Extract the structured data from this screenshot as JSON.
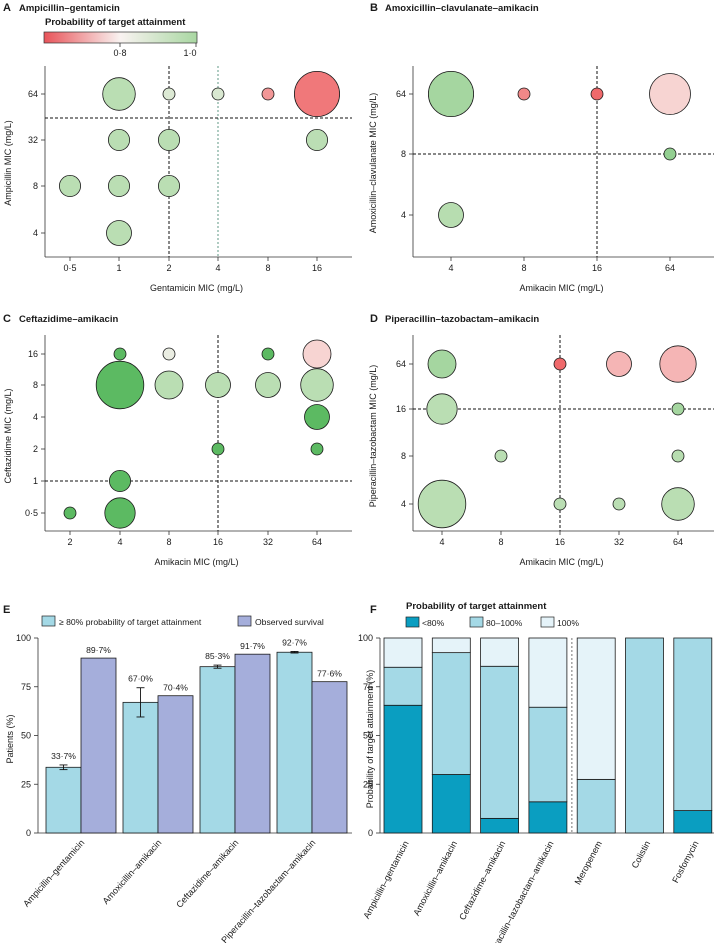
{
  "colors": {
    "red": "#ee5a5c",
    "pale": "#f9f2f0",
    "green": "#5cba62",
    "light_blue": "#a4d9e6",
    "purple": "#a5aedb",
    "teal": "#0a9ec1",
    "very_light_blue": "#e5f3f9"
  },
  "colorbar": {
    "title": "Probability of target attainment",
    "ticks": [
      "0·8",
      "1·0"
    ]
  },
  "chart_data": [
    {
      "id": "A",
      "panel_label": "A",
      "type": "scatter",
      "title": "Ampicillin–gentamicin",
      "xlabel": "Gentamicin MIC (mg/L)",
      "ylabel": "Ampicillin MIC (mg/L)",
      "x_ticks": [
        "0·5",
        "1",
        "2",
        "4",
        "8",
        "16"
      ],
      "y_ticks": [
        "4",
        "8",
        "32",
        "64"
      ],
      "x_breakpoint": "2",
      "x_secondary_line": "4",
      "y_breakpoint_between": [
        "32",
        "64"
      ],
      "points": [
        {
          "x": "1",
          "y": "64",
          "size": 6,
          "pta": 0.93
        },
        {
          "x": "2",
          "y": "64",
          "size": 1,
          "pta": 0.7
        },
        {
          "x": "4",
          "y": "64",
          "size": 1,
          "pta": 0.72
        },
        {
          "x": "8",
          "y": "64",
          "size": 1,
          "pta": 0.2
        },
        {
          "x": "16",
          "y": "64",
          "size": 14,
          "pta": 0.1
        },
        {
          "x": "1",
          "y": "32",
          "size": 2,
          "pta": 0.93
        },
        {
          "x": "2",
          "y": "32",
          "size": 2,
          "pta": 0.93
        },
        {
          "x": "16",
          "y": "32",
          "size": 2,
          "pta": 0.92
        },
        {
          "x": "0·5",
          "y": "8",
          "size": 2,
          "pta": 0.93
        },
        {
          "x": "1",
          "y": "8",
          "size": 2,
          "pta": 0.93
        },
        {
          "x": "2",
          "y": "8",
          "size": 2,
          "pta": 0.93
        },
        {
          "x": "1",
          "y": "4",
          "size": 3,
          "pta": 0.93
        }
      ]
    },
    {
      "id": "B",
      "panel_label": "B",
      "type": "scatter",
      "title": "Amoxicillin–clavulanate–amikacin",
      "xlabel": "Amikacin MIC (mg/L)",
      "ylabel": "Amoxicillin–clavulanate MIC (mg/L)",
      "x_ticks": [
        "4",
        "8",
        "16",
        "64"
      ],
      "y_ticks": [
        "4",
        "8",
        "64"
      ],
      "x_breakpoint": "16",
      "y_breakpoint_between": [
        "8",
        "8"
      ],
      "points": [
        {
          "x": "4",
          "y": "64",
          "size": 14,
          "pta": 0.96
        },
        {
          "x": "8",
          "y": "64",
          "size": 1,
          "pta": 0.15
        },
        {
          "x": "16",
          "y": "64",
          "size": 1,
          "pta": 0.05
        },
        {
          "x": "64",
          "y": "64",
          "size": 11,
          "pta": 0.4
        },
        {
          "x": "64",
          "y": "8",
          "size": 1,
          "pta": 0.97
        },
        {
          "x": "4",
          "y": "4",
          "size": 3,
          "pta": 0.95
        }
      ]
    },
    {
      "id": "C",
      "panel_label": "C",
      "type": "scatter",
      "title": "Ceftazidime–amikacin",
      "xlabel": "Amikacin MIC (mg/L)",
      "ylabel": "Ceftazidime MIC (mg/L)",
      "x_ticks": [
        "2",
        "4",
        "8",
        "16",
        "32",
        "64"
      ],
      "y_ticks": [
        "0·5",
        "1",
        "2",
        "4",
        "8",
        "16"
      ],
      "x_breakpoint": "16",
      "y_breakpoint_between": [
        "1",
        "1"
      ],
      "points": [
        {
          "x": "4",
          "y": "16",
          "size": 1,
          "pta": 1.0
        },
        {
          "x": "8",
          "y": "16",
          "size": 1,
          "pta": 0.6
        },
        {
          "x": "32",
          "y": "16",
          "size": 1,
          "pta": 1.0
        },
        {
          "x": "64",
          "y": "16",
          "size": 4,
          "pta": 0.4
        },
        {
          "x": "4",
          "y": "8",
          "size": 16,
          "pta": 1.0
        },
        {
          "x": "8",
          "y": "8",
          "size": 4,
          "pta": 0.93
        },
        {
          "x": "16",
          "y": "8",
          "size": 3,
          "pta": 0.93
        },
        {
          "x": "32",
          "y": "8",
          "size": 3,
          "pta": 0.93
        },
        {
          "x": "64",
          "y": "8",
          "size": 6,
          "pta": 0.93
        },
        {
          "x": "64",
          "y": "4",
          "size": 3,
          "pta": 1.0
        },
        {
          "x": "16",
          "y": "2",
          "size": 1,
          "pta": 1.0
        },
        {
          "x": "64",
          "y": "2",
          "size": 1,
          "pta": 1.0
        },
        {
          "x": "4",
          "y": "1",
          "size": 2,
          "pta": 1.0
        },
        {
          "x": "2",
          "y": "0·5",
          "size": 1,
          "pta": 1.0
        },
        {
          "x": "4",
          "y": "0·5",
          "size": 5,
          "pta": 1.0
        }
      ]
    },
    {
      "id": "D",
      "panel_label": "D",
      "type": "scatter",
      "title": "Piperacillin–tazobactam–amikacin",
      "xlabel": "Amikacin MIC (mg/L)",
      "ylabel": "Piperacillin–tazobactam MIC (mg/L)",
      "x_ticks": [
        "4",
        "8",
        "16",
        "32",
        "64"
      ],
      "y_ticks": [
        "4",
        "8",
        "16",
        "64"
      ],
      "x_breakpoint": "16",
      "y_breakpoint_between": [
        "16",
        "16"
      ],
      "points": [
        {
          "x": "4",
          "y": "64",
          "size": 4,
          "pta": 0.96
        },
        {
          "x": "16",
          "y": "64",
          "size": 1,
          "pta": 0.05
        },
        {
          "x": "32",
          "y": "64",
          "size": 3,
          "pta": 0.3
        },
        {
          "x": "64",
          "y": "64",
          "size": 8,
          "pta": 0.3
        },
        {
          "x": "4",
          "y": "16",
          "size": 5,
          "pta": 0.93
        },
        {
          "x": "64",
          "y": "16",
          "size": 1,
          "pta": 0.96
        },
        {
          "x": "8",
          "y": "8",
          "size": 1,
          "pta": 0.93
        },
        {
          "x": "64",
          "y": "8",
          "size": 1,
          "pta": 0.95
        },
        {
          "x": "4",
          "y": "4",
          "size": 16,
          "pta": 0.93
        },
        {
          "x": "16",
          "y": "4",
          "size": 1,
          "pta": 0.93
        },
        {
          "x": "32",
          "y": "4",
          "size": 1,
          "pta": 0.93
        },
        {
          "x": "64",
          "y": "4",
          "size": 6,
          "pta": 0.93
        }
      ]
    },
    {
      "id": "E",
      "panel_label": "E",
      "type": "bar",
      "title": "",
      "xlabel": "",
      "ylabel": "Patients (%)",
      "ylim": [
        0,
        100
      ],
      "y_ticks": [
        "0",
        "25",
        "50",
        "75",
        "100"
      ],
      "categories": [
        "Ampicillin–gentamicin",
        "Amoxicillin–amikacin",
        "Ceftazidime–amikacin",
        "Piperacillin–tazobactam–amikacin"
      ],
      "series": [
        {
          "name": "≥ 80% probability of target attainment",
          "color_key": "light_blue",
          "values": [
            33.7,
            67.0,
            85.3,
            92.7
          ],
          "error": [
            1.2,
            7.5,
            0.8,
            0.4
          ],
          "labels": [
            "33·7%",
            "67·0%",
            "85·3%",
            "92·7%"
          ]
        },
        {
          "name": "Observed survival",
          "color_key": "purple",
          "values": [
            89.7,
            70.4,
            91.7,
            77.6
          ],
          "labels": [
            "89·7%",
            "70·4%",
            "91·7%",
            "77·6%"
          ]
        }
      ]
    },
    {
      "id": "F",
      "panel_label": "F",
      "type": "bar",
      "stacked": true,
      "title": "Probability of target attainment",
      "xlabel": "",
      "ylabel": "Probability of target attainment (%)",
      "ylim": [
        0,
        100
      ],
      "y_ticks": [
        "0",
        "25",
        "50",
        "75",
        "100"
      ],
      "categories": [
        "Ampicillin–gentamicin",
        "Amoxicillin–amikacin",
        "Ceftazidime–amikacin",
        "Piperacillin–tazobactam–amikacin",
        "Meropenem",
        "Colistin",
        "Fosfomycin"
      ],
      "series": [
        {
          "name": "<80%",
          "color_key": "teal",
          "values": [
            65.5,
            30,
            7.5,
            16,
            0,
            0,
            11.5
          ]
        },
        {
          "name": "80–100%",
          "color_key": "light_blue",
          "values": [
            19.5,
            62.5,
            78,
            48.5,
            27.5,
            100,
            88.5
          ]
        },
        {
          "name": "100%",
          "color_key": "very_light_blue",
          "values": [
            15,
            7.5,
            14.5,
            35.5,
            72.5,
            0,
            0
          ]
        }
      ]
    }
  ]
}
